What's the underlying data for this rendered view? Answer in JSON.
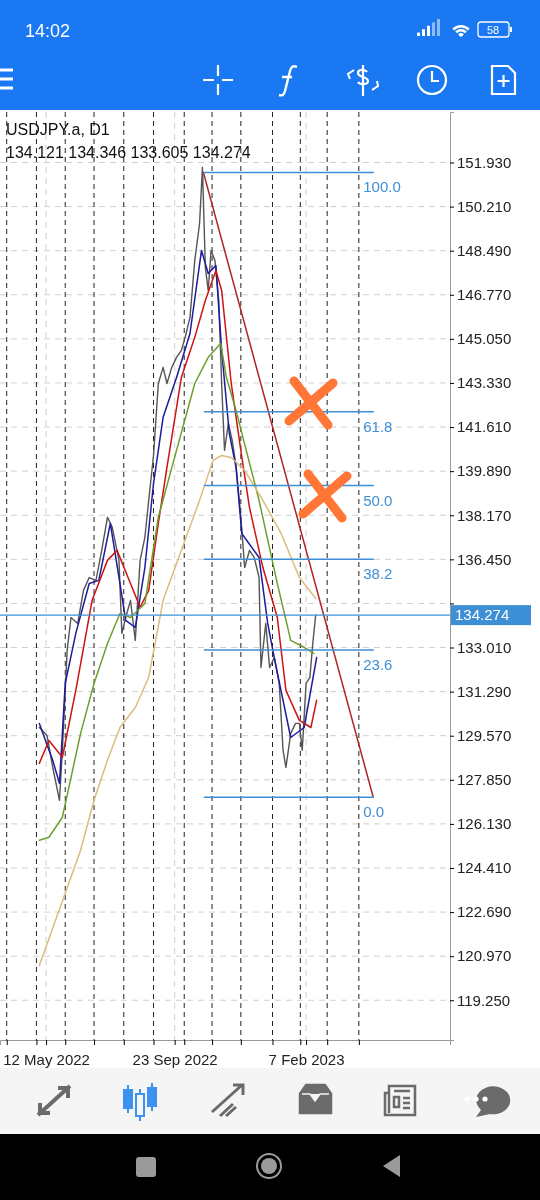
{
  "chart_data": {
    "type": "line",
    "title": "USDJPY.a, D1",
    "subtitle": "134.121 134.346 133.605 134.274",
    "annotations": [
      "14:02",
      "58"
    ],
    "xlim": [
      "2022-03-25",
      "2023-07-07"
    ],
    "xticks": [
      {
        "value": "2022-04-01",
        "label": null
      },
      {
        "value": "2022-05-02",
        "label": null
      },
      {
        "value": "2022-05-12",
        "label": "12 May 2022"
      },
      {
        "value": "2022-06-01",
        "label": null
      },
      {
        "value": "2022-07-01",
        "label": null
      },
      {
        "value": "2022-08-01",
        "label": null
      },
      {
        "value": "2022-09-01",
        "label": null
      },
      {
        "value": "2022-09-23",
        "label": "23 Sep 2022"
      },
      {
        "value": "2022-10-03",
        "label": null
      },
      {
        "value": "2022-11-01",
        "label": null
      },
      {
        "value": "2022-12-01",
        "label": null
      },
      {
        "value": "2023-01-03",
        "label": null
      },
      {
        "value": "2023-02-01",
        "label": null
      },
      {
        "value": "2023-02-07",
        "label": "7 Feb 2023"
      },
      {
        "value": "2023-03-01",
        "label": null
      },
      {
        "value": "2023-04-03",
        "label": null
      }
    ],
    "ylim": [
      117.7,
      153.9
    ],
    "yticks": [
      {
        "value": 151.93,
        "label": "151.930"
      },
      {
        "value": 150.21,
        "label": "150.210"
      },
      {
        "value": 148.49,
        "label": "148.490"
      },
      {
        "value": 146.77,
        "label": "146.770"
      },
      {
        "value": 145.05,
        "label": "145.050"
      },
      {
        "value": 143.33,
        "label": "143.330"
      },
      {
        "value": 141.61,
        "label": "141.610"
      },
      {
        "value": 139.89,
        "label": "139.890"
      },
      {
        "value": 138.17,
        "label": "138.170"
      },
      {
        "value": 136.45,
        "label": "136.450"
      },
      {
        "value": 134.73,
        "label": null
      },
      {
        "value": 133.01,
        "label": "133.010"
      },
      {
        "value": 131.29,
        "label": "131.290"
      },
      {
        "value": 129.57,
        "label": "129.570"
      },
      {
        "value": 127.85,
        "label": "127.850"
      },
      {
        "value": 126.13,
        "label": "126.130"
      },
      {
        "value": 124.41,
        "label": "124.410"
      },
      {
        "value": 122.69,
        "label": "122.690"
      },
      {
        "value": 120.97,
        "label": "120.970"
      },
      {
        "value": 119.25,
        "label": "119.250"
      }
    ],
    "grid": true,
    "ref_lines": [
      {
        "axis": "y",
        "value": 134.274,
        "label": "134.274",
        "color": "#3d8fd6"
      }
    ],
    "series": [
      {
        "color": "#555555",
        "x": [
          "2022-05-05",
          "2022-05-13",
          "2022-05-19",
          "2022-05-26",
          "2022-05-29",
          "2022-06-03",
          "2022-06-07",
          "2022-06-14",
          "2022-06-20",
          "2022-06-26",
          "2022-07-03",
          "2022-07-09",
          "2022-07-15",
          "2022-07-20",
          "2022-07-27",
          "2022-07-30",
          "2022-08-03",
          "2022-08-08",
          "2022-08-13",
          "2022-08-18",
          "2022-08-23",
          "2022-08-27",
          "2022-09-01",
          "2022-09-06",
          "2022-09-11",
          "2022-09-15",
          "2022-09-20",
          "2022-09-25",
          "2022-09-30",
          "2022-10-04",
          "2022-10-09",
          "2022-10-14",
          "2022-10-19",
          "2022-10-22",
          "2022-10-25",
          "2022-10-28",
          "2022-10-31",
          "2022-11-04",
          "2022-11-08",
          "2022-11-11",
          "2022-11-14",
          "2022-11-18",
          "2022-11-22",
          "2022-11-26",
          "2022-12-01",
          "2022-12-05",
          "2022-12-10",
          "2022-12-15",
          "2022-12-20",
          "2022-12-22",
          "2022-12-27",
          "2022-12-31",
          "2023-01-05",
          "2023-01-10",
          "2023-01-14",
          "2023-01-17",
          "2023-01-22",
          "2023-01-27",
          "2023-01-31",
          "2023-02-03",
          "2023-02-07",
          "2023-02-11",
          "2023-02-14",
          "2023-02-17"
        ],
        "values": [
          129.89,
          129.58,
          128.33,
          127.05,
          129.0,
          132.9,
          134.18,
          133.95,
          135.24,
          135.74,
          135.63,
          136.8,
          138.09,
          137.7,
          136.41,
          133.56,
          134.18,
          134.85,
          133.29,
          136.41,
          137.31,
          138.75,
          140.5,
          143.31,
          143.94,
          143.31,
          143.94,
          144.33,
          144.6,
          145.11,
          145.89,
          148.11,
          149.55,
          151.74,
          147.84,
          146.94,
          148.5,
          148.11,
          146.55,
          143.31,
          140.7,
          141.75,
          141.09,
          140.11,
          138.09,
          136.13,
          136.8,
          136.52,
          135.74,
          132.23,
          133.95,
          132.23,
          132.62,
          131.61,
          129.0,
          128.33,
          129.66,
          130.05,
          130.05,
          129.0,
          131.61,
          131.85,
          133.17,
          134.27
        ]
      },
      {
        "color": "#1c1c9c",
        "x": [
          "2022-05-05",
          "2022-05-19",
          "2022-05-26",
          "2022-06-01",
          "2022-06-12",
          "2022-06-26",
          "2022-07-06",
          "2022-07-18",
          "2022-07-28",
          "2022-08-03",
          "2022-08-13",
          "2022-08-23",
          "2022-09-01",
          "2022-09-11",
          "2022-09-25",
          "2022-10-09",
          "2022-10-21",
          "2022-10-28",
          "2022-11-05",
          "2022-11-11",
          "2022-11-19",
          "2022-11-26",
          "2022-12-02",
          "2022-12-20",
          "2022-12-29",
          "2023-01-06",
          "2023-01-22",
          "2023-02-05",
          "2023-02-18"
        ],
        "values": [
          130.05,
          128.6,
          127.71,
          131.61,
          133.56,
          135.51,
          135.63,
          137.85,
          135.51,
          134.07,
          133.8,
          136.13,
          139.41,
          141.99,
          143.54,
          145.26,
          148.5,
          147.6,
          147.91,
          144.6,
          141.36,
          140.04,
          137.46,
          136.52,
          133.95,
          132.39,
          129.5,
          129.89,
          132.62
        ]
      },
      {
        "color": "#cc1414",
        "x": [
          "2022-05-05",
          "2022-05-15",
          "2022-05-29",
          "2022-06-12",
          "2022-06-29",
          "2022-07-15",
          "2022-07-25",
          "2022-08-08",
          "2022-08-18",
          "2022-08-27",
          "2022-09-06",
          "2022-09-15",
          "2022-09-30",
          "2022-10-14",
          "2022-10-25",
          "2022-11-05",
          "2022-11-11",
          "2022-11-21",
          "2022-12-01",
          "2022-12-10",
          "2022-12-24",
          "2023-01-08",
          "2023-01-17",
          "2023-01-31",
          "2023-02-12",
          "2023-02-18"
        ],
        "values": [
          128.49,
          129.38,
          128.73,
          131.34,
          134.85,
          136.41,
          136.8,
          135.51,
          134.58,
          135.24,
          137.85,
          140.04,
          143.54,
          145.11,
          146.55,
          147.72,
          146.94,
          143.31,
          140.7,
          138.48,
          136.13,
          134.18,
          131.34,
          130.17,
          129.89,
          130.95
        ]
      },
      {
        "color": "#6f9e2e",
        "x": [
          "2022-05-05",
          "2022-05-15",
          "2022-05-29",
          "2022-06-17",
          "2022-07-01",
          "2022-07-15",
          "2022-07-28",
          "2022-08-08",
          "2022-08-23",
          "2022-09-06",
          "2022-09-25",
          "2022-10-14",
          "2022-10-28",
          "2022-11-10",
          "2022-11-16",
          "2022-11-26",
          "2022-12-20",
          "2023-01-08",
          "2023-01-22",
          "2023-02-05",
          "2023-02-15"
        ],
        "values": [
          125.49,
          125.61,
          126.39,
          129.66,
          131.61,
          133.17,
          134.34,
          134.18,
          134.73,
          138.09,
          140.7,
          143.31,
          144.33,
          144.87,
          143.54,
          142.26,
          138.75,
          135.51,
          133.29,
          133.02,
          132.78
        ]
      },
      {
        "color": "#dcbc7e",
        "x": [
          "2022-05-05",
          "2022-06-17",
          "2022-07-01",
          "2022-07-15",
          "2022-07-28",
          "2022-08-13",
          "2022-08-27",
          "2022-09-11",
          "2022-09-30",
          "2022-10-19",
          "2022-11-02",
          "2022-11-11",
          "2022-11-21",
          "2022-12-05",
          "2022-12-24",
          "2023-01-12",
          "2023-01-31",
          "2023-02-17"
        ],
        "values": [
          120.61,
          125.1,
          127.05,
          128.61,
          129.89,
          130.67,
          131.85,
          134.85,
          136.8,
          138.75,
          140.31,
          140.5,
          140.42,
          139.92,
          138.75,
          137.46,
          135.74,
          134.93
        ]
      },
      {
        "color": "#b22424",
        "x": [
          "2022-10-23",
          "2023-04-18"
        ],
        "values": [
          151.54,
          127.17
        ]
      },
      {
        "name": "100.0",
        "color": "#3d8fd6",
        "x": [
          "2022-10-24",
          "2023-04-18"
        ],
        "values": [
          151.54,
          151.54
        ]
      },
      {
        "name": "61.8",
        "color": "#3d8fd6",
        "x": [
          "2022-10-24",
          "2023-04-18"
        ],
        "values": [
          142.21,
          142.21
        ]
      },
      {
        "name": "50.0",
        "color": "#3d8fd6",
        "x": [
          "2022-10-24",
          "2023-04-18"
        ],
        "values": [
          139.33,
          139.33
        ]
      },
      {
        "name": "38.2",
        "color": "#3d8fd6",
        "x": [
          "2022-10-24",
          "2023-04-18"
        ],
        "values": [
          136.45,
          136.45
        ]
      },
      {
        "name": "23.6",
        "color": "#3d8fd6",
        "x": [
          "2022-10-24",
          "2023-04-18"
        ],
        "values": [
          132.91,
          132.91
        ]
      },
      {
        "name": "0.0",
        "color": "#3d8fd6",
        "x": [
          "2022-10-24",
          "2023-04-18"
        ],
        "values": [
          127.17,
          127.17
        ]
      }
    ]
  }
}
